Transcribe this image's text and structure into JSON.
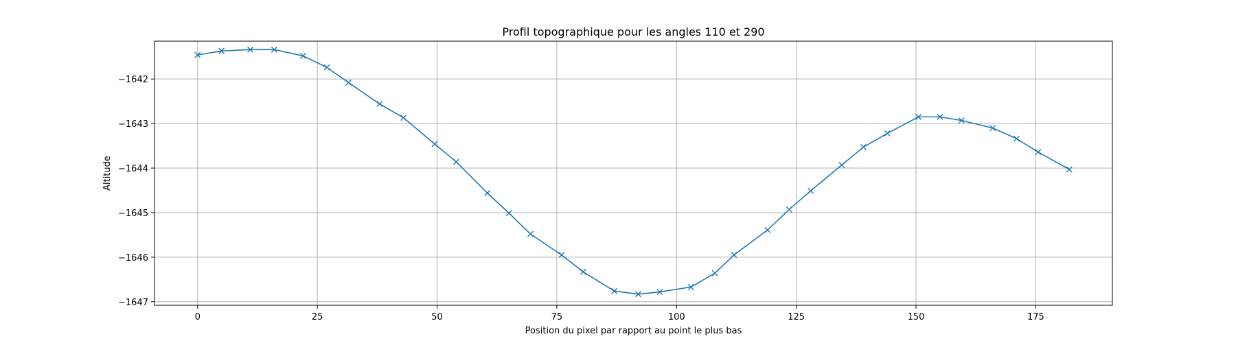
{
  "chart_data": {
    "type": "line",
    "title": "Profil topographique pour les angles 110 et 290",
    "xlabel": "Position du pixel par rapport au point le plus bas",
    "ylabel": "Altitude",
    "xlim": [
      -9,
      191
    ],
    "ylim": [
      -1647.08,
      -1641.15
    ],
    "xticks": [
      0,
      25,
      50,
      75,
      100,
      125,
      150,
      175
    ],
    "yticks": [
      -1647,
      -1646,
      -1645,
      -1644,
      -1643,
      -1642
    ],
    "ytick_labels": [
      "−1647",
      "−1646",
      "−1645",
      "−1644",
      "−1643",
      "−1642"
    ],
    "grid": true,
    "marker": "x",
    "color": "#1f77b4",
    "series": [
      {
        "x": [
          0,
          5,
          11,
          16,
          22,
          27,
          31.5,
          38,
          43,
          49.5,
          54,
          60.5,
          65,
          69.5,
          76,
          80.5,
          87,
          92,
          96.5,
          103,
          108,
          112,
          119,
          123.5,
          128,
          134.5,
          139,
          144,
          150.5,
          155,
          159.5,
          166,
          171,
          175.5,
          182
        ],
        "y": [
          -1641.46,
          -1641.37,
          -1641.34,
          -1641.34,
          -1641.48,
          -1641.74,
          -1642.08,
          -1642.56,
          -1642.87,
          -1643.46,
          -1643.86,
          -1644.56,
          -1645.01,
          -1645.48,
          -1645.95,
          -1646.33,
          -1646.76,
          -1646.83,
          -1646.78,
          -1646.67,
          -1646.36,
          -1645.95,
          -1645.39,
          -1644.93,
          -1644.51,
          -1643.93,
          -1643.53,
          -1643.22,
          -1642.85,
          -1642.85,
          -1642.93,
          -1643.1,
          -1643.34,
          -1643.64,
          -1644.03
        ]
      }
    ]
  }
}
